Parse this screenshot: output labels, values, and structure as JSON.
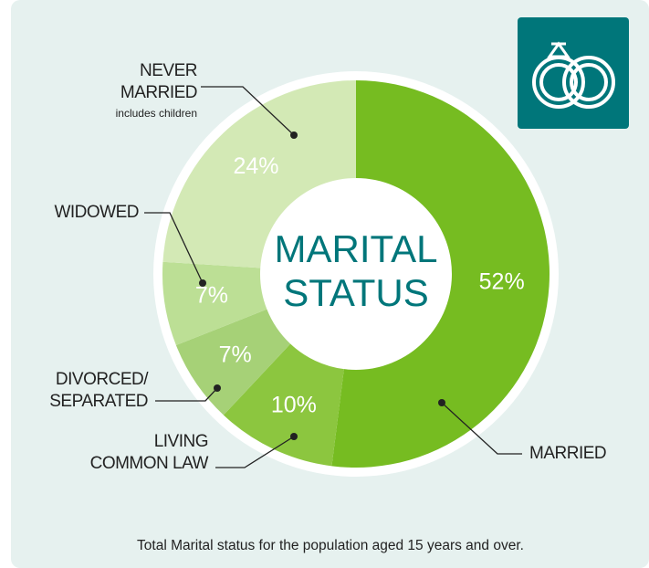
{
  "chart_data": {
    "type": "pie",
    "donut": true,
    "title": [
      "MARITAL",
      "STATUS"
    ],
    "categories": [
      [
        "MARRIED"
      ],
      [
        "LIVING",
        "COMMON LAW"
      ],
      [
        "DIVORCED/",
        "SEPARATED"
      ],
      [
        "WIDOWED"
      ],
      [
        "NEVER",
        "MARRIED"
      ]
    ],
    "annotation": "includes children",
    "values": [
      52,
      10,
      7,
      7,
      24
    ],
    "value_labels": [
      "52%",
      "10%",
      "7%",
      "7%",
      "24%"
    ],
    "colors": [
      "#76bc21",
      "#8cc63f",
      "#a6d177",
      "#bcdf95",
      "#d3e9b5"
    ],
    "caption": "Total Marital status for the population aged 15 years and over."
  }
}
